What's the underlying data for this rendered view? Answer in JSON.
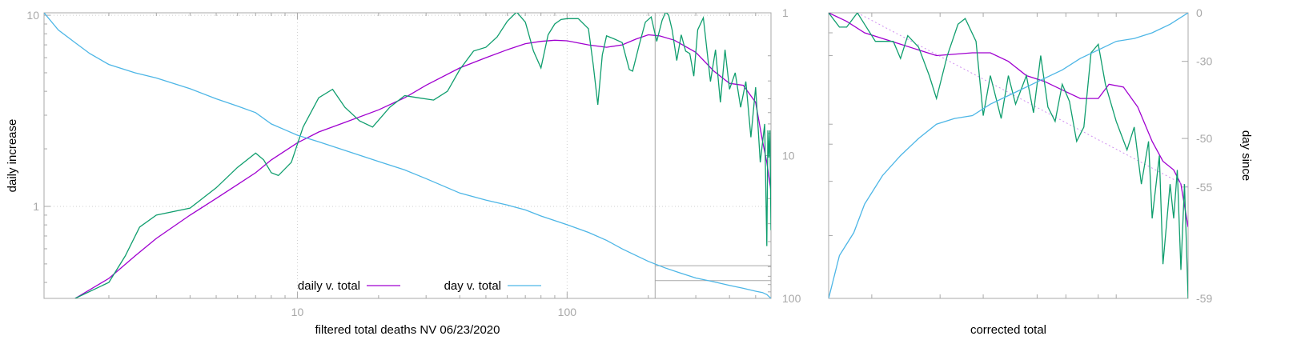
{
  "chart_data": [
    {
      "type": "line",
      "xscale": "log",
      "yscale": "log",
      "y2scale": "log-reversed",
      "xlabel": "filtered total deaths NV 06/23/2020",
      "ylabel": "daily increase",
      "y2label": "",
      "xlim": [
        1.15,
        570
      ],
      "ylim": [
        0.33,
        10.3
      ],
      "y2lim": [
        1,
        100
      ],
      "x_ticks": [
        {
          "v": 10,
          "label": "10"
        },
        {
          "v": 100,
          "label": "100"
        }
      ],
      "y_ticks": [
        {
          "v": 1,
          "label": "1"
        },
        {
          "v": 10,
          "label": "10"
        }
      ],
      "y2_ticks": [
        {
          "v": 1,
          "label": "1"
        },
        {
          "v": 10,
          "label": "10"
        },
        {
          "v": 100,
          "label": "100"
        }
      ],
      "grid": true,
      "legend_position": "bottom-center",
      "series": [
        {
          "name": "daily v. total",
          "color": "#a000d0",
          "axis": "y",
          "x": [
            1.5,
            2.0,
            2.5,
            3.0,
            4.0,
            5.0,
            6.0,
            7.0,
            8.0,
            10.0,
            12.0,
            15.0,
            20.0,
            25.0,
            30.0,
            40.0,
            50.0,
            60.0,
            70.0,
            80.0,
            90.0,
            100.0,
            120.0,
            140.0,
            160.0,
            180.0,
            200.0,
            220.0,
            250.0,
            300.0,
            350.0,
            400.0,
            450.0,
            500.0,
            530.0,
            550.0,
            570.0
          ],
          "y": [
            0.33,
            0.42,
            0.55,
            0.68,
            0.9,
            1.1,
            1.3,
            1.5,
            1.75,
            2.15,
            2.45,
            2.75,
            3.2,
            3.7,
            4.3,
            5.3,
            6.0,
            6.6,
            7.1,
            7.3,
            7.4,
            7.35,
            7.0,
            6.8,
            7.0,
            7.5,
            7.9,
            7.8,
            7.4,
            6.4,
            5.1,
            4.4,
            4.3,
            3.5,
            2.2,
            1.7,
            1.2
          ]
        },
        {
          "name": "",
          "color": "#109e6e",
          "axis": "y",
          "x": [
            1.5,
            2.0,
            2.3,
            2.6,
            3.0,
            4.0,
            5.0,
            6.0,
            7.0,
            7.5,
            8.0,
            8.5,
            9.5,
            10.5,
            12.0,
            13.5,
            15.0,
            17.0,
            19.0,
            22.0,
            25.0,
            28.0,
            32.0,
            36.0,
            40.0,
            45.0,
            50.0,
            55.0,
            60.0,
            65.0,
            70.0,
            75.0,
            80.0,
            85.0,
            90.0,
            95.0,
            100.0,
            110.0,
            120.0,
            125.0,
            130.0,
            135.0,
            140.0,
            150.0,
            160.0,
            170.0,
            175.0,
            185.0,
            195.0,
            205.0,
            215.0,
            225.0,
            232.0,
            238.0,
            245.0,
            255.0,
            265.0,
            275.0,
            285.0,
            295.0,
            305.0,
            320.0,
            340.0,
            355.0,
            370.0,
            385.0,
            400.0,
            420.0,
            440.0,
            460.0,
            480.0,
            500.0,
            520.0,
            540.0,
            550.0,
            555.0,
            560.0,
            565.0,
            570.0
          ],
          "y": [
            0.33,
            0.4,
            0.55,
            0.78,
            0.9,
            0.98,
            1.25,
            1.6,
            1.9,
            1.75,
            1.5,
            1.45,
            1.7,
            2.6,
            3.7,
            4.1,
            3.3,
            2.8,
            2.6,
            3.3,
            3.8,
            3.7,
            3.6,
            4.0,
            5.2,
            6.5,
            6.8,
            7.7,
            9.3,
            10.4,
            9.2,
            6.5,
            5.3,
            7.9,
            9.0,
            9.5,
            9.6,
            9.6,
            8.5,
            5.5,
            3.4,
            6.2,
            7.8,
            7.5,
            7.2,
            5.2,
            5.1,
            7.0,
            9.2,
            9.8,
            7.3,
            9.4,
            10.4,
            10.0,
            8.4,
            5.8,
            7.9,
            6.5,
            6.3,
            4.8,
            8.4,
            9.7,
            4.5,
            6.6,
            3.5,
            6.6,
            4.1,
            5.0,
            3.3,
            4.5,
            2.3,
            4.2,
            1.7,
            2.7,
            0.62,
            2.5,
            1.8,
            2.5,
            0.75
          ]
        },
        {
          "name": "day v. total",
          "color": "#4db6e6",
          "axis": "y2",
          "x": [
            1.15,
            1.3,
            1.5,
            1.7,
            2.0,
            2.5,
            3.0,
            4.0,
            5.0,
            6.0,
            7.0,
            8.0,
            9.0,
            10.0,
            12.0,
            15.0,
            20.0,
            25.0,
            30.0,
            40.0,
            50.0,
            60.0,
            70.0,
            80.0,
            100.0,
            120.0,
            140.0,
            160.0,
            180.0,
            200.0,
            230.0,
            260.0,
            300.0,
            350.0,
            400.0,
            450.0,
            500.0,
            530.0,
            550.0,
            570.0
          ],
          "y": [
            1.0,
            1.32,
            1.62,
            1.93,
            2.3,
            2.63,
            2.86,
            3.4,
            4.0,
            4.5,
            5.0,
            6.0,
            6.6,
            7.2,
            8.0,
            9.2,
            11.0,
            12.6,
            14.5,
            18.3,
            20.5,
            22.2,
            24.0,
            26.5,
            30.5,
            34.5,
            39.2,
            45.0,
            50.0,
            55.0,
            61.0,
            66.0,
            72.0,
            76.5,
            81.0,
            85.0,
            89.0,
            91.0,
            94.0,
            100.0
          ]
        }
      ],
      "inset_box": {
        "x_from": 212,
        "x_to": 570,
        "y2_levels": [
          59,
          75,
          100
        ]
      }
    },
    {
      "type": "line",
      "xscale": "log",
      "yscale": "log",
      "xlabel": "corrected total",
      "ylabel": "",
      "y2label": "day since",
      "xlim": [
        0,
        1
      ],
      "ylim": [
        0,
        1
      ],
      "y2_ticks": [
        {
          "label": "0",
          "f": 0.0
        },
        {
          "label": "-30",
          "f": 0.17
        },
        {
          "label": "-50",
          "f": 0.44
        },
        {
          "label": "-55",
          "f": 0.61
        },
        {
          "label": "-59",
          "f": 1.0
        }
      ],
      "y_minor_ticks": [
        0.07,
        0.15,
        0.39,
        0.46,
        0.59,
        0.78
      ],
      "x_minor_ticks": [
        0.12,
        0.31,
        0.43,
        0.58,
        0.66,
        0.75,
        0.8
      ],
      "grid": false,
      "series": [
        {
          "name": "",
          "color": "#a000d0",
          "axis": "y",
          "x": [
            0.0,
            0.05,
            0.1,
            0.2,
            0.3,
            0.4,
            0.45,
            0.5,
            0.55,
            0.6,
            0.65,
            0.7,
            0.75,
            0.78,
            0.82,
            0.86,
            0.9,
            0.93,
            0.96,
            0.98,
            1.0
          ],
          "y": [
            0.0,
            0.03,
            0.07,
            0.11,
            0.15,
            0.14,
            0.14,
            0.17,
            0.22,
            0.24,
            0.27,
            0.3,
            0.3,
            0.25,
            0.26,
            0.33,
            0.45,
            0.52,
            0.55,
            0.6,
            0.75
          ]
        },
        {
          "name": "",
          "color": "#d090f0",
          "axis": "y",
          "x": [
            0.08,
            1.0
          ],
          "y": [
            0.0,
            0.61
          ]
        },
        {
          "name": "",
          "color": "#109e6e",
          "axis": "y",
          "x": [
            0.0,
            0.03,
            0.05,
            0.08,
            0.1,
            0.13,
            0.18,
            0.2,
            0.22,
            0.25,
            0.28,
            0.3,
            0.33,
            0.36,
            0.38,
            0.41,
            0.43,
            0.45,
            0.48,
            0.5,
            0.52,
            0.55,
            0.57,
            0.59,
            0.61,
            0.63,
            0.65,
            0.67,
            0.69,
            0.71,
            0.73,
            0.75,
            0.77,
            0.8,
            0.83,
            0.85,
            0.87,
            0.89,
            0.9,
            0.92,
            0.93,
            0.95,
            0.96,
            0.97,
            0.98,
            0.99,
            1.0
          ],
          "y": [
            0.0,
            0.05,
            0.05,
            0.0,
            0.04,
            0.1,
            0.1,
            0.16,
            0.08,
            0.12,
            0.22,
            0.3,
            0.15,
            0.04,
            0.02,
            0.1,
            0.36,
            0.22,
            0.37,
            0.22,
            0.32,
            0.22,
            0.35,
            0.15,
            0.33,
            0.38,
            0.25,
            0.31,
            0.45,
            0.4,
            0.14,
            0.11,
            0.25,
            0.38,
            0.48,
            0.4,
            0.6,
            0.45,
            0.72,
            0.5,
            0.88,
            0.6,
            0.72,
            0.55,
            0.9,
            0.6,
            1.0
          ]
        },
        {
          "name": "",
          "color": "#4db6e6",
          "axis": "y",
          "x": [
            0.0,
            0.03,
            0.07,
            0.1,
            0.15,
            0.2,
            0.25,
            0.3,
            0.35,
            0.4,
            0.45,
            0.5,
            0.55,
            0.6,
            0.65,
            0.7,
            0.75,
            0.8,
            0.85,
            0.9,
            0.95,
            1.0
          ],
          "y": [
            1.0,
            0.85,
            0.77,
            0.67,
            0.57,
            0.5,
            0.44,
            0.39,
            0.37,
            0.36,
            0.32,
            0.29,
            0.26,
            0.23,
            0.2,
            0.16,
            0.13,
            0.1,
            0.09,
            0.07,
            0.04,
            0.0
          ]
        }
      ]
    }
  ]
}
